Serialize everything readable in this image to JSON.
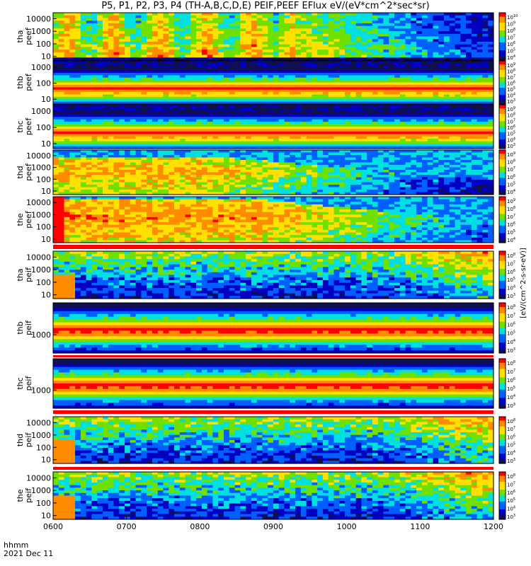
{
  "title": "P5, P1, P2, P3, P4 (TH-A,B,C,D,E) PEIF,PEEF EFlux eV/(eV*cm^2*sec*sr)",
  "time_axis": {
    "label": "hhmm",
    "date": "2021 Dec 11",
    "ticks": [
      "0600",
      "0700",
      "0800",
      "0900",
      "1000",
      "1100",
      "1200"
    ]
  },
  "colorbar_label": "[eV/(cm^2-s-sr-eV)]",
  "colors": {
    "red": "#ff0000",
    "orange": "#ff8c00",
    "yellow": "#ffe000",
    "green": "#70e000",
    "cyan": "#00e0e0",
    "blue": "#0060ff",
    "deep_blue": "#0000c0",
    "dark": "#101050"
  },
  "chart_data": [
    {
      "type": "heatmap",
      "probe": "tha",
      "label": [
        "tha",
        "peef"
      ],
      "yticks": [
        "10",
        "100",
        "1000",
        "10000"
      ],
      "cbar_ticks": [
        "10^10",
        "10^9",
        "10^8",
        "10^7",
        "10^6",
        "10^5",
        "10^4"
      ],
      "ylim": [
        5,
        30000
      ],
      "log_y": true,
      "pattern": "eburst"
    },
    {
      "type": "heatmap",
      "probe": "thb",
      "label": [
        "thb",
        "peef"
      ],
      "yticks": [
        "10",
        "100",
        "1000"
      ],
      "cbar_ticks": [
        "10^9",
        "10^8",
        "10^7",
        "10^6",
        "10^5",
        "10^4",
        "10^3"
      ],
      "ylim": [
        5,
        2500
      ],
      "log_y": true,
      "pattern": "bands_e"
    },
    {
      "type": "heatmap",
      "probe": "thc",
      "label": [
        "thc",
        "peef"
      ],
      "yticks": [
        "10",
        "100",
        "1000"
      ],
      "cbar_ticks": [
        "10^9",
        "10^8",
        "10^7",
        "10^6",
        "10^5",
        "10^4",
        "10^3"
      ],
      "ylim": [
        5,
        2500
      ],
      "log_y": true,
      "pattern": "bands_e"
    },
    {
      "type": "heatmap",
      "probe": "thd",
      "label": [
        "thd",
        "peef"
      ],
      "yticks": [
        "10",
        "100",
        "1000",
        "10000"
      ],
      "cbar_ticks": [
        "10^9",
        "10^8",
        "10^7",
        "10^6",
        "10^5",
        "10^4"
      ],
      "ylim": [
        5,
        30000
      ],
      "log_y": true,
      "pattern": "ewarm"
    },
    {
      "type": "heatmap",
      "probe": "the",
      "label": [
        "the",
        "peef"
      ],
      "yticks": [
        "10",
        "100",
        "1000",
        "10000"
      ],
      "cbar_ticks": [
        "10^9",
        "10^8",
        "10^7",
        "10^6",
        "10^5",
        "10^4"
      ],
      "ylim": [
        5,
        30000
      ],
      "log_y": true,
      "pattern": "ehot"
    },
    {
      "type": "heatmap",
      "probe": "tha",
      "label": [
        "tha",
        "peif"
      ],
      "yticks": [
        "10",
        "100",
        "1000",
        "10000"
      ],
      "cbar_ticks": [
        "10^8",
        "10^7",
        "10^6",
        "10^5",
        "10^4",
        "10^3"
      ],
      "ylim": [
        5,
        30000
      ],
      "log_y": true,
      "pattern": "ion"
    },
    {
      "type": "heatmap",
      "probe": "thb",
      "label": [
        "thb",
        "peif"
      ],
      "yticks": [
        "1000"
      ],
      "cbar_ticks": [
        "10^8",
        "10^7",
        "10^6",
        "10^5",
        "10^4",
        "10^3"
      ],
      "ylim": [
        300,
        8000
      ],
      "log_y": true,
      "pattern": "bands_i"
    },
    {
      "type": "heatmap",
      "probe": "thc",
      "label": [
        "thc",
        "peif"
      ],
      "yticks": [
        "1000"
      ],
      "cbar_ticks": [
        "10^8",
        "10^7",
        "10^6",
        "10^5",
        "10^4",
        "10^3"
      ],
      "ylim": [
        300,
        8000
      ],
      "log_y": true,
      "pattern": "bands_i"
    },
    {
      "type": "heatmap",
      "probe": "thd",
      "label": [
        "thd",
        "peif"
      ],
      "yticks": [
        "10",
        "100",
        "1000",
        "10000"
      ],
      "cbar_ticks": [
        "10^8",
        "10^7",
        "10^6",
        "10^5",
        "10^4",
        "10^3"
      ],
      "ylim": [
        5,
        30000
      ],
      "log_y": true,
      "pattern": "ion"
    },
    {
      "type": "heatmap",
      "probe": "the",
      "label": [
        "the",
        "peif"
      ],
      "yticks": [
        "10",
        "100",
        "1000",
        "10000"
      ],
      "cbar_ticks": [
        "10^8",
        "10^7",
        "10^6",
        "10^5",
        "10^4",
        "10^3"
      ],
      "ylim": [
        5,
        30000
      ],
      "log_y": true,
      "pattern": "ion"
    }
  ]
}
